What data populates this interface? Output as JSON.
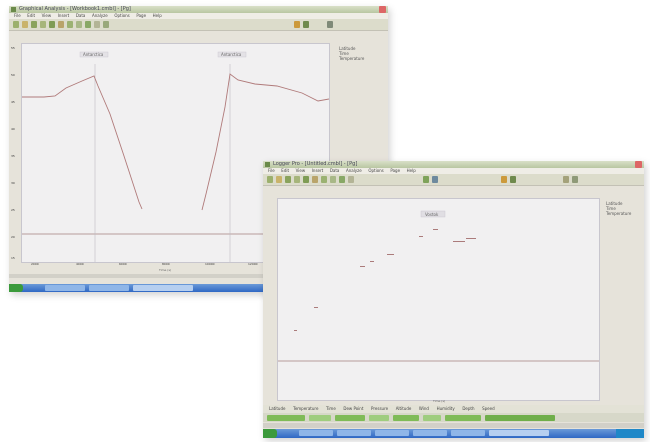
{
  "window1": {
    "title": "Graphical Analysis - [Workbook1.cmbl] - [Pg]",
    "menu": [
      "File",
      "Edit",
      "View",
      "Insert",
      "Data",
      "Analyze",
      "Options",
      "Page",
      "Help"
    ],
    "legend": [
      "Latitude",
      "Time",
      "Temperature"
    ],
    "x_axis_title": "Time (s)",
    "y_axis_ticks": [
      "55",
      "50",
      "45",
      "40",
      "35",
      "30",
      "25",
      "20",
      "15"
    ],
    "x_ticks": [
      "2000",
      "4000",
      "6000",
      "8000",
      "10000",
      "12000",
      "14000"
    ],
    "annotations": [
      "Antarctica",
      "Antarctica"
    ]
  },
  "window2": {
    "title": "Logger Pro - [Untitled.cmbl] - [Pg]",
    "menu": [
      "File",
      "Edit",
      "View",
      "Insert",
      "Data",
      "Analyze",
      "Options",
      "Page",
      "Help"
    ],
    "legend": [
      "Latitude",
      "Time",
      "Temperature"
    ],
    "annotation": "Vostok",
    "x_axis_title": "Time (s)",
    "y_axis_ticks": [
      "",
      "",
      "",
      "",
      "",
      "",
      "",
      ""
    ],
    "x_ticks": [
      "",
      "",
      "",
      "",
      "",
      ""
    ],
    "tabs": [
      "Latitude",
      "Temperature",
      "Time",
      "Dew Point",
      "Pressure",
      "Altitude",
      "Wind",
      "Humidity",
      "Depth",
      "Speed"
    ]
  },
  "taskbar": {
    "start_label": "start"
  }
}
